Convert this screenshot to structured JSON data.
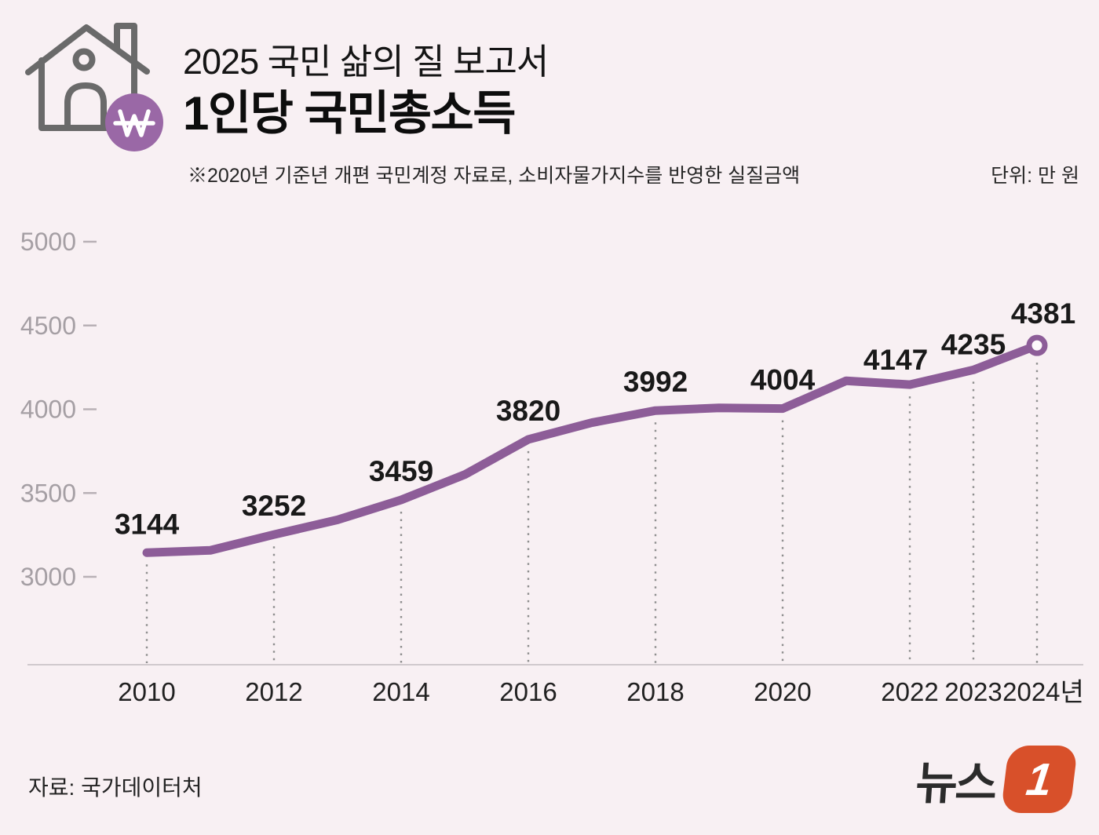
{
  "header": {
    "report_title": "2025 국민 삶의 질 보고서",
    "title": "1인당 국민총소득",
    "note": "※2020년 기준년 개편 국민계정 자료로, 소비자물가지수를 반영한 실질금액",
    "unit_label": "단위: 만 원",
    "icon": "house-with-won-coin-icon"
  },
  "footer": {
    "source": "자료: 국가데이터처",
    "logo_text": "뉴스",
    "logo_badge": "1"
  },
  "colors": {
    "background": "#f8f0f3",
    "line": "#8d5d98",
    "won_badge_purple": "#9a68a6",
    "house_icon_gray": "#6a6a6a",
    "value_label_text": "#191919",
    "y_tick_text": "#a59fa4",
    "y_tick_dash": "#b9b1b6",
    "dotted_guide": "#8f8f8f",
    "axis_line": "#d0c9cd",
    "marker_fill": "#fdf9fb",
    "news1_orange": "#d8502a",
    "news1_text": "#2b2b2b"
  },
  "chart_data": {
    "type": "line",
    "title": "1인당 국민총소득",
    "unit": "만 원",
    "x_range": [
      2010,
      2024
    ],
    "y_ticks": [
      5000,
      4500,
      4000,
      3500,
      3000
    ],
    "y_range_shown": [
      3000,
      5000
    ],
    "grid": false,
    "legend": false,
    "x_ticks": [
      {
        "year": 2010,
        "label": "2010"
      },
      {
        "year": 2012,
        "label": "2012"
      },
      {
        "year": 2014,
        "label": "2014"
      },
      {
        "year": 2016,
        "label": "2016"
      },
      {
        "year": 2018,
        "label": "2018"
      },
      {
        "year": 2020,
        "label": "2020"
      },
      {
        "year": 2022,
        "label": "2022"
      },
      {
        "year": 2023,
        "label": "2023"
      },
      {
        "year": 2024,
        "label": "2024년"
      }
    ],
    "points": [
      {
        "year": 2010,
        "value": 3144,
        "labeled": true
      },
      {
        "year": 2011,
        "value": 3158,
        "labeled": false
      },
      {
        "year": 2012,
        "value": 3252,
        "labeled": true
      },
      {
        "year": 2013,
        "value": 3340,
        "labeled": false
      },
      {
        "year": 2014,
        "value": 3459,
        "labeled": true
      },
      {
        "year": 2015,
        "value": 3610,
        "labeled": false
      },
      {
        "year": 2016,
        "value": 3820,
        "labeled": true
      },
      {
        "year": 2017,
        "value": 3920,
        "labeled": false
      },
      {
        "year": 2018,
        "value": 3992,
        "labeled": true
      },
      {
        "year": 2019,
        "value": 4008,
        "labeled": false
      },
      {
        "year": 2020,
        "value": 4004,
        "labeled": true
      },
      {
        "year": 2021,
        "value": 4170,
        "labeled": false
      },
      {
        "year": 2022,
        "value": 4147,
        "labeled": true
      },
      {
        "year": 2023,
        "value": 4235,
        "labeled": true
      },
      {
        "year": 2024,
        "value": 4381,
        "labeled": true,
        "marker": "open-circle"
      }
    ]
  }
}
